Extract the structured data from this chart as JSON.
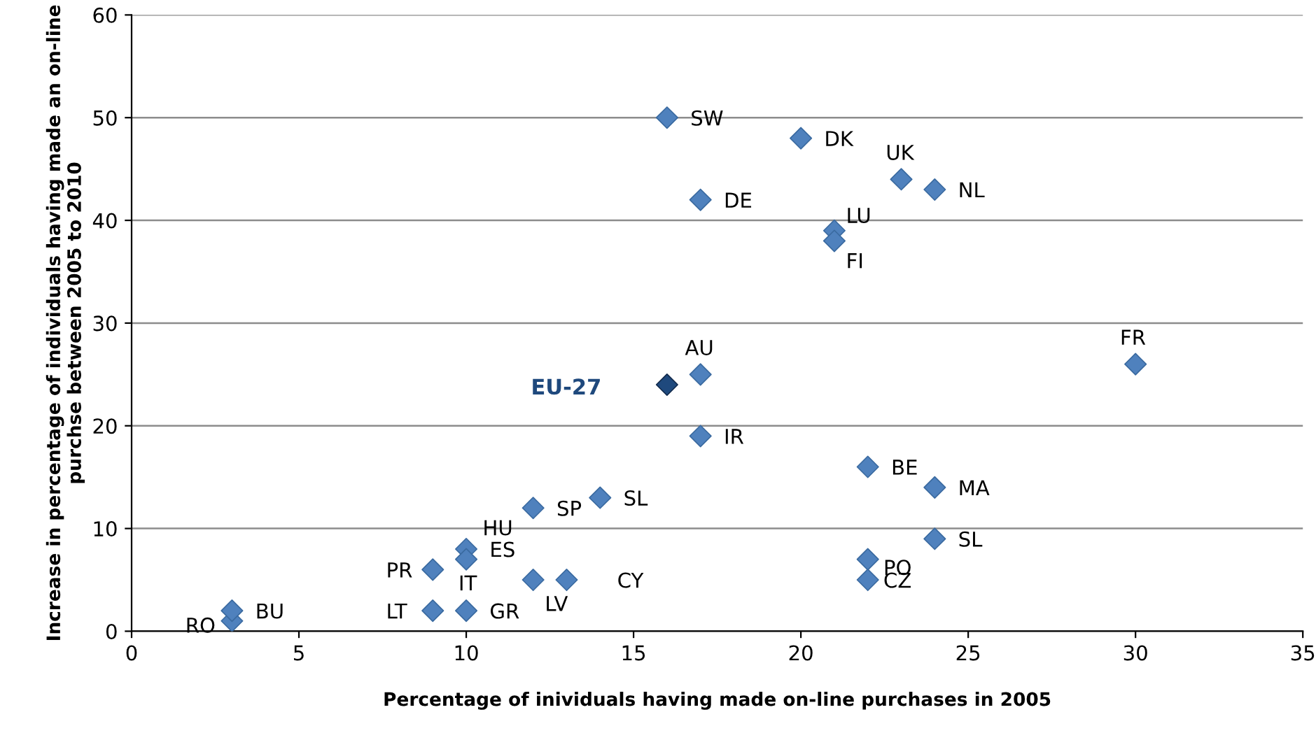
{
  "chart_data": {
    "type": "scatter",
    "xlabel": "Percentage of inividuals having made on-line purchases in 2005",
    "ylabel": "Increase in percentage of individuals having made an on-line purchse between 2005 to 2010",
    "xlim": [
      0,
      35
    ],
    "xticks": [
      0,
      5,
      10,
      15,
      20,
      25,
      30,
      35
    ],
    "ylim": [
      0,
      60
    ],
    "yticks": [
      0,
      10,
      20,
      30,
      40,
      50,
      60
    ],
    "grid": "y",
    "legend": false,
    "marker": "diamond",
    "series": [
      {
        "color": "#4f81bd",
        "x": [
          16,
          20,
          23,
          24,
          17,
          21,
          21,
          30,
          17,
          17,
          22,
          24,
          14,
          12,
          10,
          10,
          9,
          13,
          12,
          10,
          9,
          3,
          3,
          24,
          22,
          22
        ],
        "values": [
          50,
          48,
          44,
          43,
          42,
          39,
          38,
          26,
          25,
          19,
          16,
          14,
          13,
          12,
          8,
          7,
          6,
          5,
          5,
          2,
          2,
          1,
          2,
          9,
          7,
          5
        ]
      },
      {
        "name": "EU-27",
        "color": "#1f497d",
        "x": [
          16
        ],
        "values": [
          24
        ]
      }
    ],
    "annotations": [
      {
        "text": "SW",
        "x": 16,
        "y": 50
      },
      {
        "text": "DK",
        "x": 20,
        "y": 48
      },
      {
        "text": "UK",
        "x": 23,
        "y": 44
      },
      {
        "text": "NL",
        "x": 24,
        "y": 43
      },
      {
        "text": "DE",
        "x": 17,
        "y": 42
      },
      {
        "text": "LU",
        "x": 21,
        "y": 39
      },
      {
        "text": "FI",
        "x": 21,
        "y": 38
      },
      {
        "text": "FR",
        "x": 30,
        "y": 26
      },
      {
        "text": "AU",
        "x": 17,
        "y": 25
      },
      {
        "text": "IR",
        "x": 17,
        "y": 19
      },
      {
        "text": "BE",
        "x": 22,
        "y": 16
      },
      {
        "text": "MA",
        "x": 24,
        "y": 14
      },
      {
        "text": "SL",
        "x": 14,
        "y": 13
      },
      {
        "text": "SP",
        "x": 12,
        "y": 12
      },
      {
        "text": "HU",
        "x": 12,
        "y": 12
      },
      {
        "text": "ES",
        "x": 10,
        "y": 8
      },
      {
        "text": "IT",
        "x": 10,
        "y": 7
      },
      {
        "text": "PR",
        "x": 9,
        "y": 6
      },
      {
        "text": "CY",
        "x": 13,
        "y": 5
      },
      {
        "text": "LV",
        "x": 12,
        "y": 5
      },
      {
        "text": "GR",
        "x": 10,
        "y": 2
      },
      {
        "text": "LT",
        "x": 9,
        "y": 2
      },
      {
        "text": "RO",
        "x": 3,
        "y": 1
      },
      {
        "text": "BU",
        "x": 3,
        "y": 2
      },
      {
        "text": "SL",
        "x": 24,
        "y": 9
      },
      {
        "text": "PO",
        "x": 22,
        "y": 7
      },
      {
        "text": "CZ",
        "x": 22,
        "y": 5
      }
    ]
  }
}
